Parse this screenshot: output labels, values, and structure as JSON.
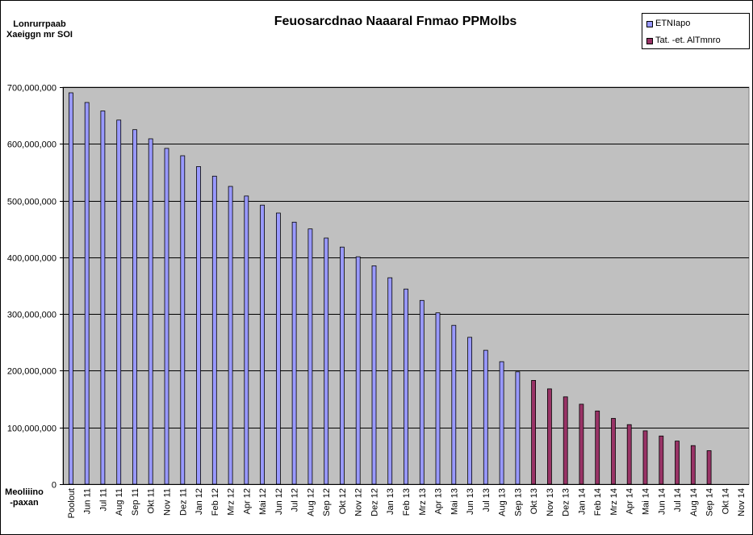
{
  "chart_data": {
    "type": "bar",
    "title": "Feuosarcdnao Naaaral Fnmao PPMolbs",
    "ylabel": "Lonrurrpaab Xaeiggn mr SOI",
    "xlabel": "Meoliiino -paxan",
    "ylim": [
      0,
      700000000
    ],
    "y_ticks": [
      "0",
      "100,000,000",
      "200,000,000",
      "300,000,000",
      "400,000,000",
      "500,000,000",
      "600,000,000",
      "700,000,000"
    ],
    "grid": true,
    "legend_position": "top-right",
    "categories": [
      "Poolout",
      "Jun 11",
      "Jul 11",
      "Aug 11",
      "Sep 11",
      "Okt 11",
      "Nov 11",
      "Dez 11",
      "Jan 12",
      "Feb 12",
      "Mrz 12",
      "Apr 12",
      "Mai 12",
      "Jun 12",
      "Jul 12",
      "Aug 12",
      "Sep 12",
      "Okt 12",
      "Nov 12",
      "Dez 12",
      "Jan 13",
      "Feb 13",
      "Mrz 13",
      "Apr 13",
      "Mai 13",
      "Jun 13",
      "Jul 13",
      "Aug 13",
      "Sep 13",
      "Okt 13",
      "Nov 13",
      "Dez 13",
      "Jan 14",
      "Feb 14",
      "Mrz 14",
      "Apr 14",
      "Mai 14",
      "Jun 14",
      "Jul 14",
      "Aug 14",
      "Sep 14",
      "Okt 14",
      "Nov 14"
    ],
    "series": [
      {
        "name": "ETNIapo",
        "color": "#9999ff",
        "values": [
          690000000,
          673000000,
          658000000,
          642000000,
          625000000,
          609000000,
          592000000,
          579000000,
          560000000,
          543000000,
          525000000,
          508000000,
          492000000,
          478000000,
          462000000,
          450000000,
          434000000,
          418000000,
          401000000,
          385000000,
          364000000,
          344000000,
          324000000,
          302000000,
          280000000,
          259000000,
          236000000,
          216000000,
          198000000,
          null,
          null,
          null,
          null,
          null,
          null,
          null,
          null,
          null,
          null,
          null,
          null,
          null,
          null
        ]
      },
      {
        "name": "Tat. -et. AlTmnro",
        "color": "#993366",
        "values": [
          null,
          null,
          null,
          null,
          null,
          null,
          null,
          null,
          null,
          null,
          null,
          null,
          null,
          null,
          null,
          null,
          null,
          null,
          null,
          null,
          null,
          null,
          null,
          null,
          null,
          null,
          null,
          null,
          null,
          183000000,
          168000000,
          154000000,
          141000000,
          129000000,
          116000000,
          105000000,
          94000000,
          85000000,
          76000000,
          68000000,
          59000000,
          null,
          null
        ]
      }
    ]
  }
}
